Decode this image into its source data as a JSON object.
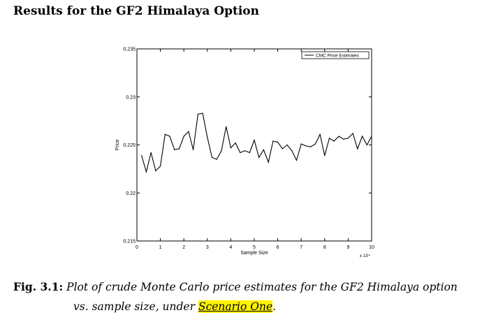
{
  "heading": "Results for the GF2 Himalaya Option",
  "caption": {
    "label": "Fig. 3.1:",
    "text_line1": "Plot of crude Monte Carlo price estimates for the GF2 Himalaya option",
    "text_line2_prefix": "vs. sample size, under",
    "highlight": "Scenario One",
    "suffix": "."
  },
  "chart_data": {
    "type": "line",
    "xlabel": "Sample Size",
    "ylabel": "Price",
    "x_multiplier_label": "x 10⁴",
    "xlim": [
      0,
      10
    ],
    "ylim": [
      0.215,
      0.235
    ],
    "xticks": [
      0,
      1,
      2,
      3,
      4,
      5,
      6,
      7,
      8,
      9,
      10
    ],
    "xtick_labels": [
      "0",
      "1",
      "2",
      "3",
      "4",
      "5",
      "6",
      "7",
      "8",
      "9",
      "10"
    ],
    "yticks": [
      0.215,
      0.22,
      0.225,
      0.23,
      0.235
    ],
    "ytick_labels": [
      "0.215",
      "0.22",
      "0.225",
      "0.23",
      "0.235"
    ],
    "grid": false,
    "legend_position": "top-right",
    "series": [
      {
        "name": "CMC Price Estimates",
        "color": "#000000",
        "x": [
          0.2,
          0.4,
          0.6,
          0.8,
          1.0,
          1.2,
          1.4,
          1.6,
          1.8,
          2.0,
          2.2,
          2.4,
          2.6,
          2.8,
          3.0,
          3.2,
          3.4,
          3.6,
          3.8,
          4.0,
          4.2,
          4.4,
          4.6,
          4.8,
          5.0,
          5.2,
          5.4,
          5.6,
          5.8,
          6.0,
          6.2,
          6.4,
          6.6,
          6.8,
          7.0,
          7.2,
          7.4,
          7.6,
          7.8,
          8.0,
          8.2,
          8.4,
          8.6,
          8.8,
          9.0,
          9.2,
          9.4,
          9.6,
          9.8,
          10.0
        ],
        "y": [
          0.2239,
          0.2222,
          0.2242,
          0.2223,
          0.2228,
          0.2261,
          0.2259,
          0.2245,
          0.2246,
          0.2259,
          0.2264,
          0.2245,
          0.2282,
          0.2283,
          0.2258,
          0.2237,
          0.2235,
          0.2244,
          0.2269,
          0.2247,
          0.2252,
          0.2242,
          0.2244,
          0.2242,
          0.2255,
          0.2237,
          0.2245,
          0.2232,
          0.2254,
          0.2253,
          0.2246,
          0.225,
          0.2244,
          0.2234,
          0.2251,
          0.2249,
          0.2248,
          0.2251,
          0.2261,
          0.2239,
          0.2257,
          0.2254,
          0.2259,
          0.2256,
          0.2257,
          0.2262,
          0.2246,
          0.2259,
          0.225,
          0.2259
        ]
      }
    ]
  }
}
